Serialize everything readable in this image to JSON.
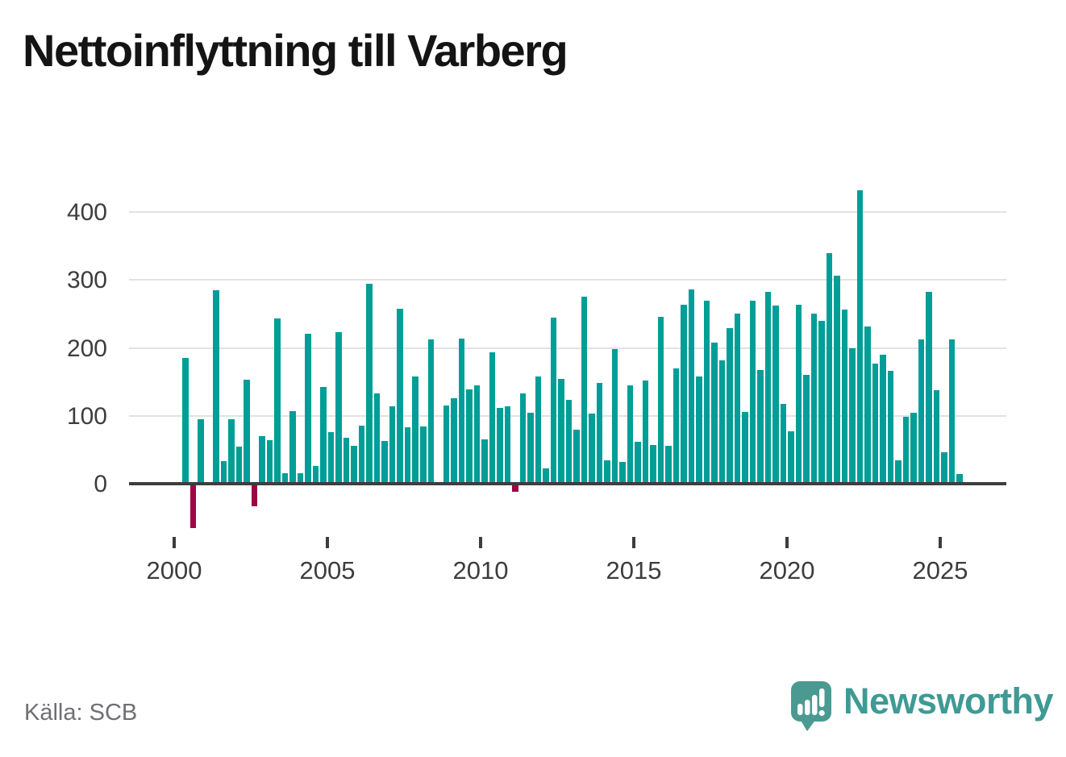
{
  "title": "Nettoinflyttning till Varberg",
  "source": "Källa: SCB",
  "brand": {
    "name": "Newsworthy",
    "icon": "newsworthy-speech-bubble-bar-chart-icon",
    "wordmark_color": "#3f9a94",
    "icon_color": "#4a9a92"
  },
  "colors": {
    "positive": "#009e97",
    "negative": "#a00544",
    "axis": "#3d3d3d",
    "gridline": "#e2e2e2",
    "tick_label": "#3d3d3d",
    "title_text": "#141414",
    "source_text": "#6f6f74",
    "background": "#ffffff"
  },
  "chart_data": {
    "type": "bar",
    "title": "Nettoinflyttning till Varberg",
    "xlabel": "",
    "ylabel": "",
    "x_ticks": [
      2000,
      2005,
      2010,
      2015,
      2020,
      2025
    ],
    "y_ticks": [
      0,
      100,
      200,
      300,
      400
    ],
    "ylim": [
      -100,
      460
    ],
    "grid": true,
    "legend": false,
    "points": [
      {
        "label": "2000 Q2",
        "value": 185
      },
      {
        "label": "2000 Q3",
        "value": -65
      },
      {
        "label": "2000 Q4",
        "value": 95
      },
      {
        "label": "2001 Q1",
        "value": 0
      },
      {
        "label": "2001 Q2",
        "value": 285
      },
      {
        "label": "2001 Q3",
        "value": 33
      },
      {
        "label": "2001 Q4",
        "value": 95
      },
      {
        "label": "2002 Q1",
        "value": 55
      },
      {
        "label": "2002 Q2",
        "value": 153
      },
      {
        "label": "2002 Q3",
        "value": -33
      },
      {
        "label": "2002 Q4",
        "value": 70
      },
      {
        "label": "2003 Q1",
        "value": 64
      },
      {
        "label": "2003 Q2",
        "value": 243
      },
      {
        "label": "2003 Q3",
        "value": 16
      },
      {
        "label": "2003 Q4",
        "value": 107
      },
      {
        "label": "2004 Q1",
        "value": 15
      },
      {
        "label": "2004 Q2",
        "value": 221
      },
      {
        "label": "2004 Q3",
        "value": 26
      },
      {
        "label": "2004 Q4",
        "value": 142
      },
      {
        "label": "2005 Q1",
        "value": 76
      },
      {
        "label": "2005 Q2",
        "value": 223
      },
      {
        "label": "2005 Q3",
        "value": 68
      },
      {
        "label": "2005 Q4",
        "value": 56
      },
      {
        "label": "2006 Q1",
        "value": 85
      },
      {
        "label": "2006 Q2",
        "value": 294
      },
      {
        "label": "2006 Q3",
        "value": 133
      },
      {
        "label": "2006 Q4",
        "value": 63
      },
      {
        "label": "2007 Q1",
        "value": 114
      },
      {
        "label": "2007 Q2",
        "value": 258
      },
      {
        "label": "2007 Q3",
        "value": 83
      },
      {
        "label": "2007 Q4",
        "value": 158
      },
      {
        "label": "2008 Q1",
        "value": 84
      },
      {
        "label": "2008 Q2",
        "value": 212
      },
      {
        "label": "2008 Q3",
        "value": 0
      },
      {
        "label": "2008 Q4",
        "value": 115
      },
      {
        "label": "2009 Q1",
        "value": 126
      },
      {
        "label": "2009 Q2",
        "value": 214
      },
      {
        "label": "2009 Q3",
        "value": 139
      },
      {
        "label": "2009 Q4",
        "value": 145
      },
      {
        "label": "2010 Q1",
        "value": 65
      },
      {
        "label": "2010 Q2",
        "value": 193
      },
      {
        "label": "2010 Q3",
        "value": 112
      },
      {
        "label": "2010 Q4",
        "value": 114
      },
      {
        "label": "2011 Q1",
        "value": -12
      },
      {
        "label": "2011 Q2",
        "value": 133
      },
      {
        "label": "2011 Q3",
        "value": 105
      },
      {
        "label": "2011 Q4",
        "value": 158
      },
      {
        "label": "2012 Q1",
        "value": 23
      },
      {
        "label": "2012 Q2",
        "value": 244
      },
      {
        "label": "2012 Q3",
        "value": 154
      },
      {
        "label": "2012 Q4",
        "value": 123
      },
      {
        "label": "2013 Q1",
        "value": 79
      },
      {
        "label": "2013 Q2",
        "value": 275
      },
      {
        "label": "2013 Q3",
        "value": 103
      },
      {
        "label": "2013 Q4",
        "value": 149
      },
      {
        "label": "2014 Q1",
        "value": 34
      },
      {
        "label": "2014 Q2",
        "value": 198
      },
      {
        "label": "2014 Q3",
        "value": 32
      },
      {
        "label": "2014 Q4",
        "value": 145
      },
      {
        "label": "2015 Q1",
        "value": 62
      },
      {
        "label": "2015 Q2",
        "value": 152
      },
      {
        "label": "2015 Q3",
        "value": 57
      },
      {
        "label": "2015 Q4",
        "value": 246
      },
      {
        "label": "2016 Q1",
        "value": 56
      },
      {
        "label": "2016 Q2",
        "value": 170
      },
      {
        "label": "2016 Q3",
        "value": 263
      },
      {
        "label": "2016 Q4",
        "value": 286
      },
      {
        "label": "2017 Q1",
        "value": 158
      },
      {
        "label": "2017 Q2",
        "value": 269
      },
      {
        "label": "2017 Q3",
        "value": 208
      },
      {
        "label": "2017 Q4",
        "value": 182
      },
      {
        "label": "2018 Q1",
        "value": 229
      },
      {
        "label": "2018 Q2",
        "value": 251
      },
      {
        "label": "2018 Q3",
        "value": 106
      },
      {
        "label": "2018 Q4",
        "value": 270
      },
      {
        "label": "2019 Q1",
        "value": 167
      },
      {
        "label": "2019 Q2",
        "value": 283
      },
      {
        "label": "2019 Q3",
        "value": 262
      },
      {
        "label": "2019 Q4",
        "value": 117
      },
      {
        "label": "2020 Q1",
        "value": 77
      },
      {
        "label": "2020 Q2",
        "value": 263
      },
      {
        "label": "2020 Q3",
        "value": 160
      },
      {
        "label": "2020 Q4",
        "value": 250
      },
      {
        "label": "2021 Q1",
        "value": 240
      },
      {
        "label": "2021 Q2",
        "value": 339
      },
      {
        "label": "2021 Q3",
        "value": 306
      },
      {
        "label": "2021 Q4",
        "value": 257
      },
      {
        "label": "2022 Q1",
        "value": 199
      },
      {
        "label": "2022 Q2",
        "value": 432
      },
      {
        "label": "2022 Q3",
        "value": 231
      },
      {
        "label": "2022 Q4",
        "value": 177
      },
      {
        "label": "2023 Q1",
        "value": 190
      },
      {
        "label": "2023 Q2",
        "value": 166
      },
      {
        "label": "2023 Q3",
        "value": 34
      },
      {
        "label": "2023 Q4",
        "value": 98
      },
      {
        "label": "2024 Q1",
        "value": 104
      },
      {
        "label": "2024 Q2",
        "value": 213
      },
      {
        "label": "2024 Q3",
        "value": 283
      },
      {
        "label": "2024 Q4",
        "value": 138
      },
      {
        "label": "2025 Q1",
        "value": 46
      },
      {
        "label": "2025 Q2",
        "value": 213
      },
      {
        "label": "2025 Q3",
        "value": 14
      }
    ]
  }
}
